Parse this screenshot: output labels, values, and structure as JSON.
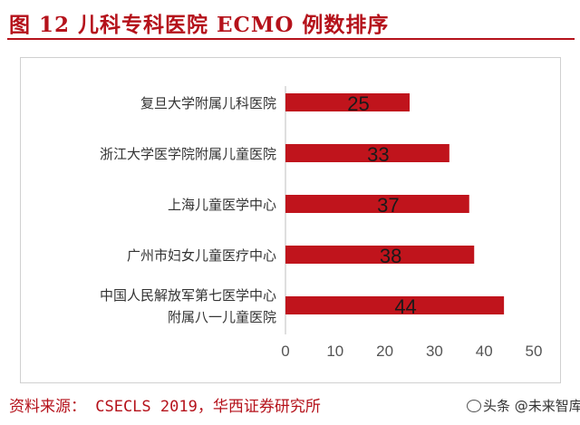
{
  "header": {
    "title": "图 12    儿科专科医院 ECMO 例数排序"
  },
  "footer": {
    "source": "资料来源： CSECLS 2019，华西证券研究所",
    "watermark": "头条 @未来智库"
  },
  "colors": {
    "accent": "#b5121b",
    "bar": "#c0141c"
  },
  "chart_data": {
    "type": "bar",
    "orientation": "horizontal",
    "categories": [
      [
        "复旦大学附属儿科医院"
      ],
      [
        "浙江大学医学院附属儿童医院"
      ],
      [
        "上海儿童医学中心"
      ],
      [
        "广州市妇女儿童医疗中心"
      ],
      [
        "中国人民解放军第七医学中心",
        "附属八一儿童医院"
      ]
    ],
    "values": [
      25,
      33,
      37,
      38,
      44
    ],
    "xlim": [
      0,
      50
    ],
    "xticks": [
      0,
      10,
      20,
      30,
      40,
      50
    ],
    "data_labels": true,
    "grid": false,
    "legend": "none"
  }
}
